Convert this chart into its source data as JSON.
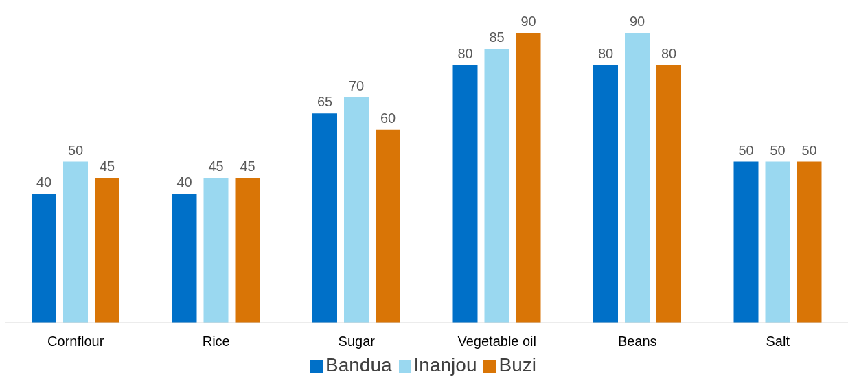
{
  "chart_data": {
    "type": "bar",
    "categories": [
      "Cornflour",
      "Rice",
      "Sugar",
      "Vegetable oil",
      "Beans",
      "Salt"
    ],
    "series": [
      {
        "name": "Bandua",
        "color": "#0070c8",
        "values": [
          40,
          40,
          65,
          80,
          80,
          50
        ]
      },
      {
        "name": "Inanjou",
        "color": "#9ad8f0",
        "values": [
          50,
          45,
          70,
          85,
          90,
          50
        ]
      },
      {
        "name": "Buzi",
        "color": "#d97506",
        "values": [
          45,
          45,
          60,
          90,
          80,
          50
        ]
      }
    ],
    "data_labels": true,
    "legend": "bottom"
  }
}
